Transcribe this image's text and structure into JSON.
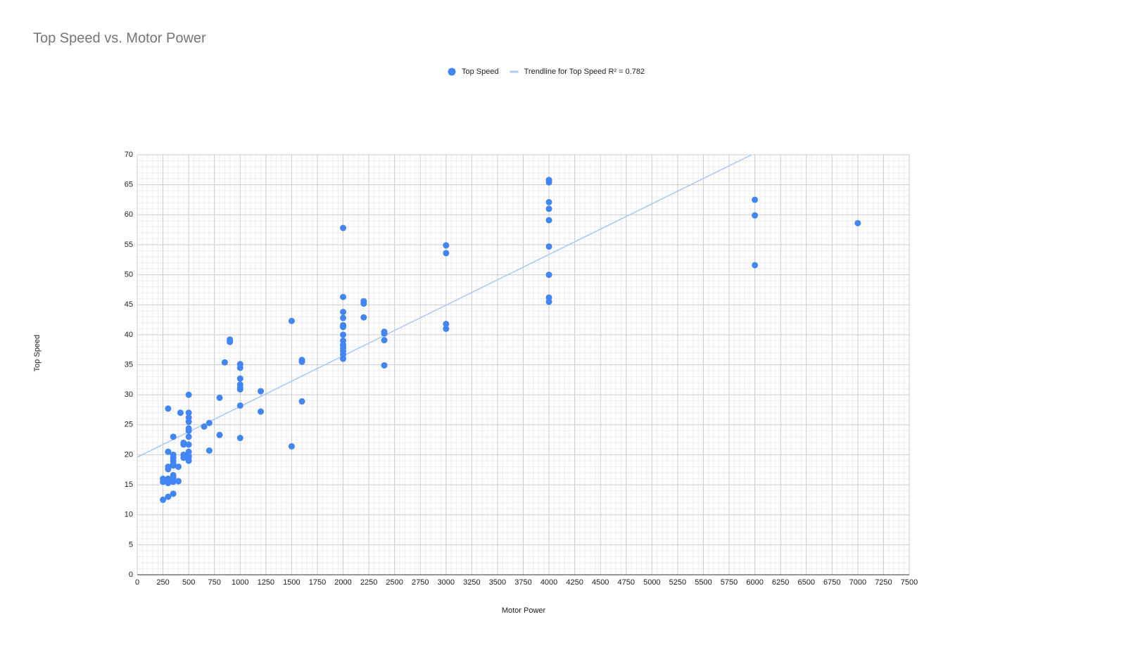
{
  "chart_data": {
    "type": "scatter",
    "title": "Top Speed vs. Motor Power",
    "x_label": "Motor Power",
    "y_label": "Top Speed",
    "series": [
      {
        "name": "Top Speed",
        "color": "#4285f4",
        "x": [
          250,
          250,
          250,
          300,
          300,
          300,
          300,
          300,
          300,
          300,
          350,
          350,
          350,
          350,
          350,
          350,
          350,
          350,
          350,
          350,
          400,
          400,
          420,
          450,
          450,
          450,
          450,
          500,
          500,
          500,
          500,
          500,
          500,
          500,
          500,
          500,
          500,
          500,
          500,
          650,
          700,
          700,
          800,
          800,
          850,
          900,
          900,
          1000,
          1000,
          1000,
          1000,
          1000,
          1000,
          1000,
          1000,
          1200,
          1200,
          1500,
          1500,
          1600,
          1600,
          1600,
          2000,
          2000,
          2000,
          2000,
          2000,
          2000,
          2000,
          2000,
          2000,
          2000,
          2000,
          2000,
          2000,
          2200,
          2200,
          2200,
          2400,
          2400,
          2400,
          2400,
          3000,
          3000,
          3000,
          3000,
          4000,
          4000,
          4000,
          4000,
          4000,
          4000,
          4000,
          4000,
          4000,
          6000,
          6000,
          6000,
          7000
        ],
        "values": [
          12.5,
          15.5,
          16,
          27.7,
          20.5,
          18,
          17.6,
          16,
          15.3,
          13,
          23,
          20,
          19.5,
          19,
          18.5,
          18.2,
          16.6,
          16.2,
          15.5,
          13.5,
          18,
          15.6,
          27,
          22,
          21.7,
          20,
          19.5,
          30,
          27,
          26.2,
          25.5,
          24.4,
          24,
          23,
          21.7,
          20.5,
          19.8,
          19.6,
          19,
          24.7,
          25.3,
          20.7,
          29.5,
          23.3,
          35.4,
          39.2,
          38.8,
          35.1,
          34.5,
          32.7,
          31.7,
          31.2,
          30.9,
          28.2,
          22.8,
          30.6,
          27.2,
          42.3,
          21.4,
          35.8,
          35.5,
          28.9,
          57.8,
          46.3,
          43.8,
          42.8,
          41.6,
          41.3,
          40,
          39,
          38.3,
          37.8,
          37.3,
          36.7,
          36,
          45.6,
          45.2,
          42.9,
          40.5,
          40.2,
          39.1,
          34.9,
          54.9,
          53.6,
          41.8,
          41,
          65.8,
          65.4,
          62.1,
          61,
          59.1,
          54.7,
          50,
          46.2,
          45.5,
          62.5,
          59.9,
          51.6,
          58.6
        ]
      },
      {
        "name": "Trendline for Top Speed R² = 0.782",
        "color": "#a9c8f8",
        "type": "line",
        "x": [
          0,
          5968
        ],
        "values": [
          19.6,
          70
        ]
      }
    ],
    "xlim": [
      0,
      7500
    ],
    "ylim": [
      0,
      70
    ],
    "xticks": [
      0,
      250,
      500,
      750,
      1000,
      1250,
      1500,
      1750,
      2000,
      2250,
      2500,
      2750,
      3000,
      3250,
      3500,
      3750,
      4000,
      4250,
      4500,
      4750,
      5000,
      5250,
      5500,
      5750,
      6000,
      6250,
      6500,
      6750,
      7000,
      7250,
      7500
    ],
    "yticks": [
      0,
      5,
      10,
      15,
      20,
      25,
      30,
      35,
      40,
      45,
      50,
      55,
      60,
      65,
      70
    ],
    "grid": true,
    "minor_grid": true,
    "legend": "top"
  }
}
